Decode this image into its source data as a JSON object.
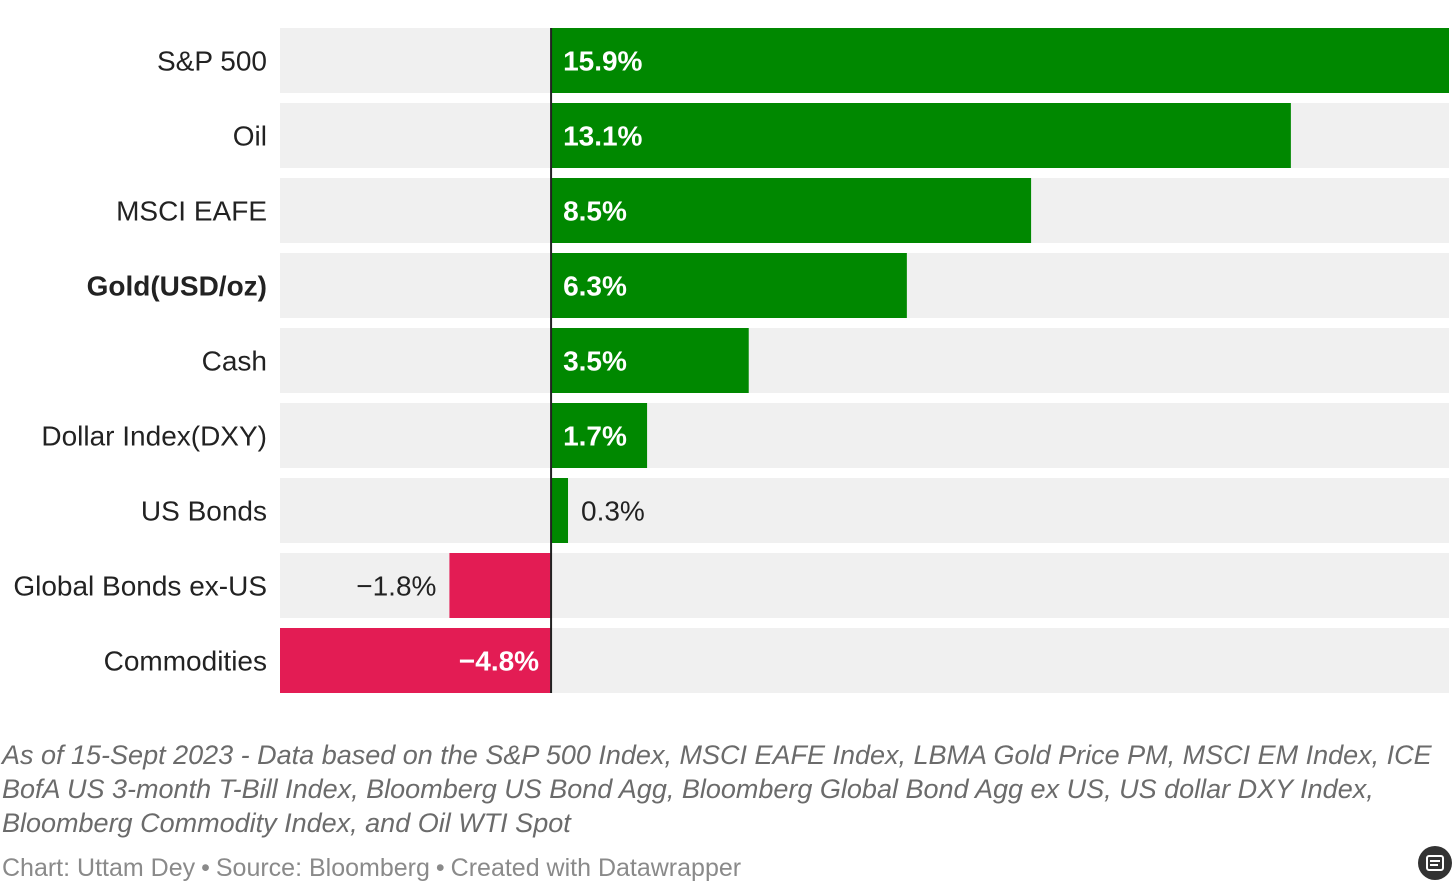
{
  "chart_data": {
    "type": "bar",
    "orientation": "horizontal",
    "categories": [
      "S&P 500",
      "Oil",
      "MSCI EAFE",
      "Gold(USD/oz)",
      "Cash",
      "Dollar Index(DXY)",
      "US Bonds",
      "Global Bonds ex-US",
      "Commodities"
    ],
    "values": [
      15.9,
      13.1,
      8.5,
      6.3,
      3.5,
      1.7,
      0.3,
      -1.8,
      -4.8
    ],
    "value_labels": [
      "15.9%",
      "13.1%",
      "8.5%",
      "6.3%",
      "3.5%",
      "1.7%",
      "0.3%",
      "−1.8%",
      "−4.8%"
    ],
    "bold_category": "Gold(USD/oz)",
    "xlim": [
      -4.8,
      15.9
    ],
    "colors": {
      "positive": "#008800",
      "negative": "#e31c54",
      "track": "#f0f0f0",
      "zero_line": "#222222"
    }
  },
  "notes": "As of 15-Sept 2023 - Data based on the S&P 500 Index, MSCI EAFE Index, LBMA Gold Price PM, MSCI EM Index, ICE BofA US 3-month T-Bill Index, Bloomberg US Bond Agg, Bloomberg Global Bond Agg ex US, US dollar DXY Index, Bloomberg Commodity Index, and Oil WTI Spot",
  "credit": {
    "chart": "Chart: Uttam Dey",
    "source": "Source: Bloomberg",
    "created": "Created with Datawrapper",
    "separator": "•"
  }
}
